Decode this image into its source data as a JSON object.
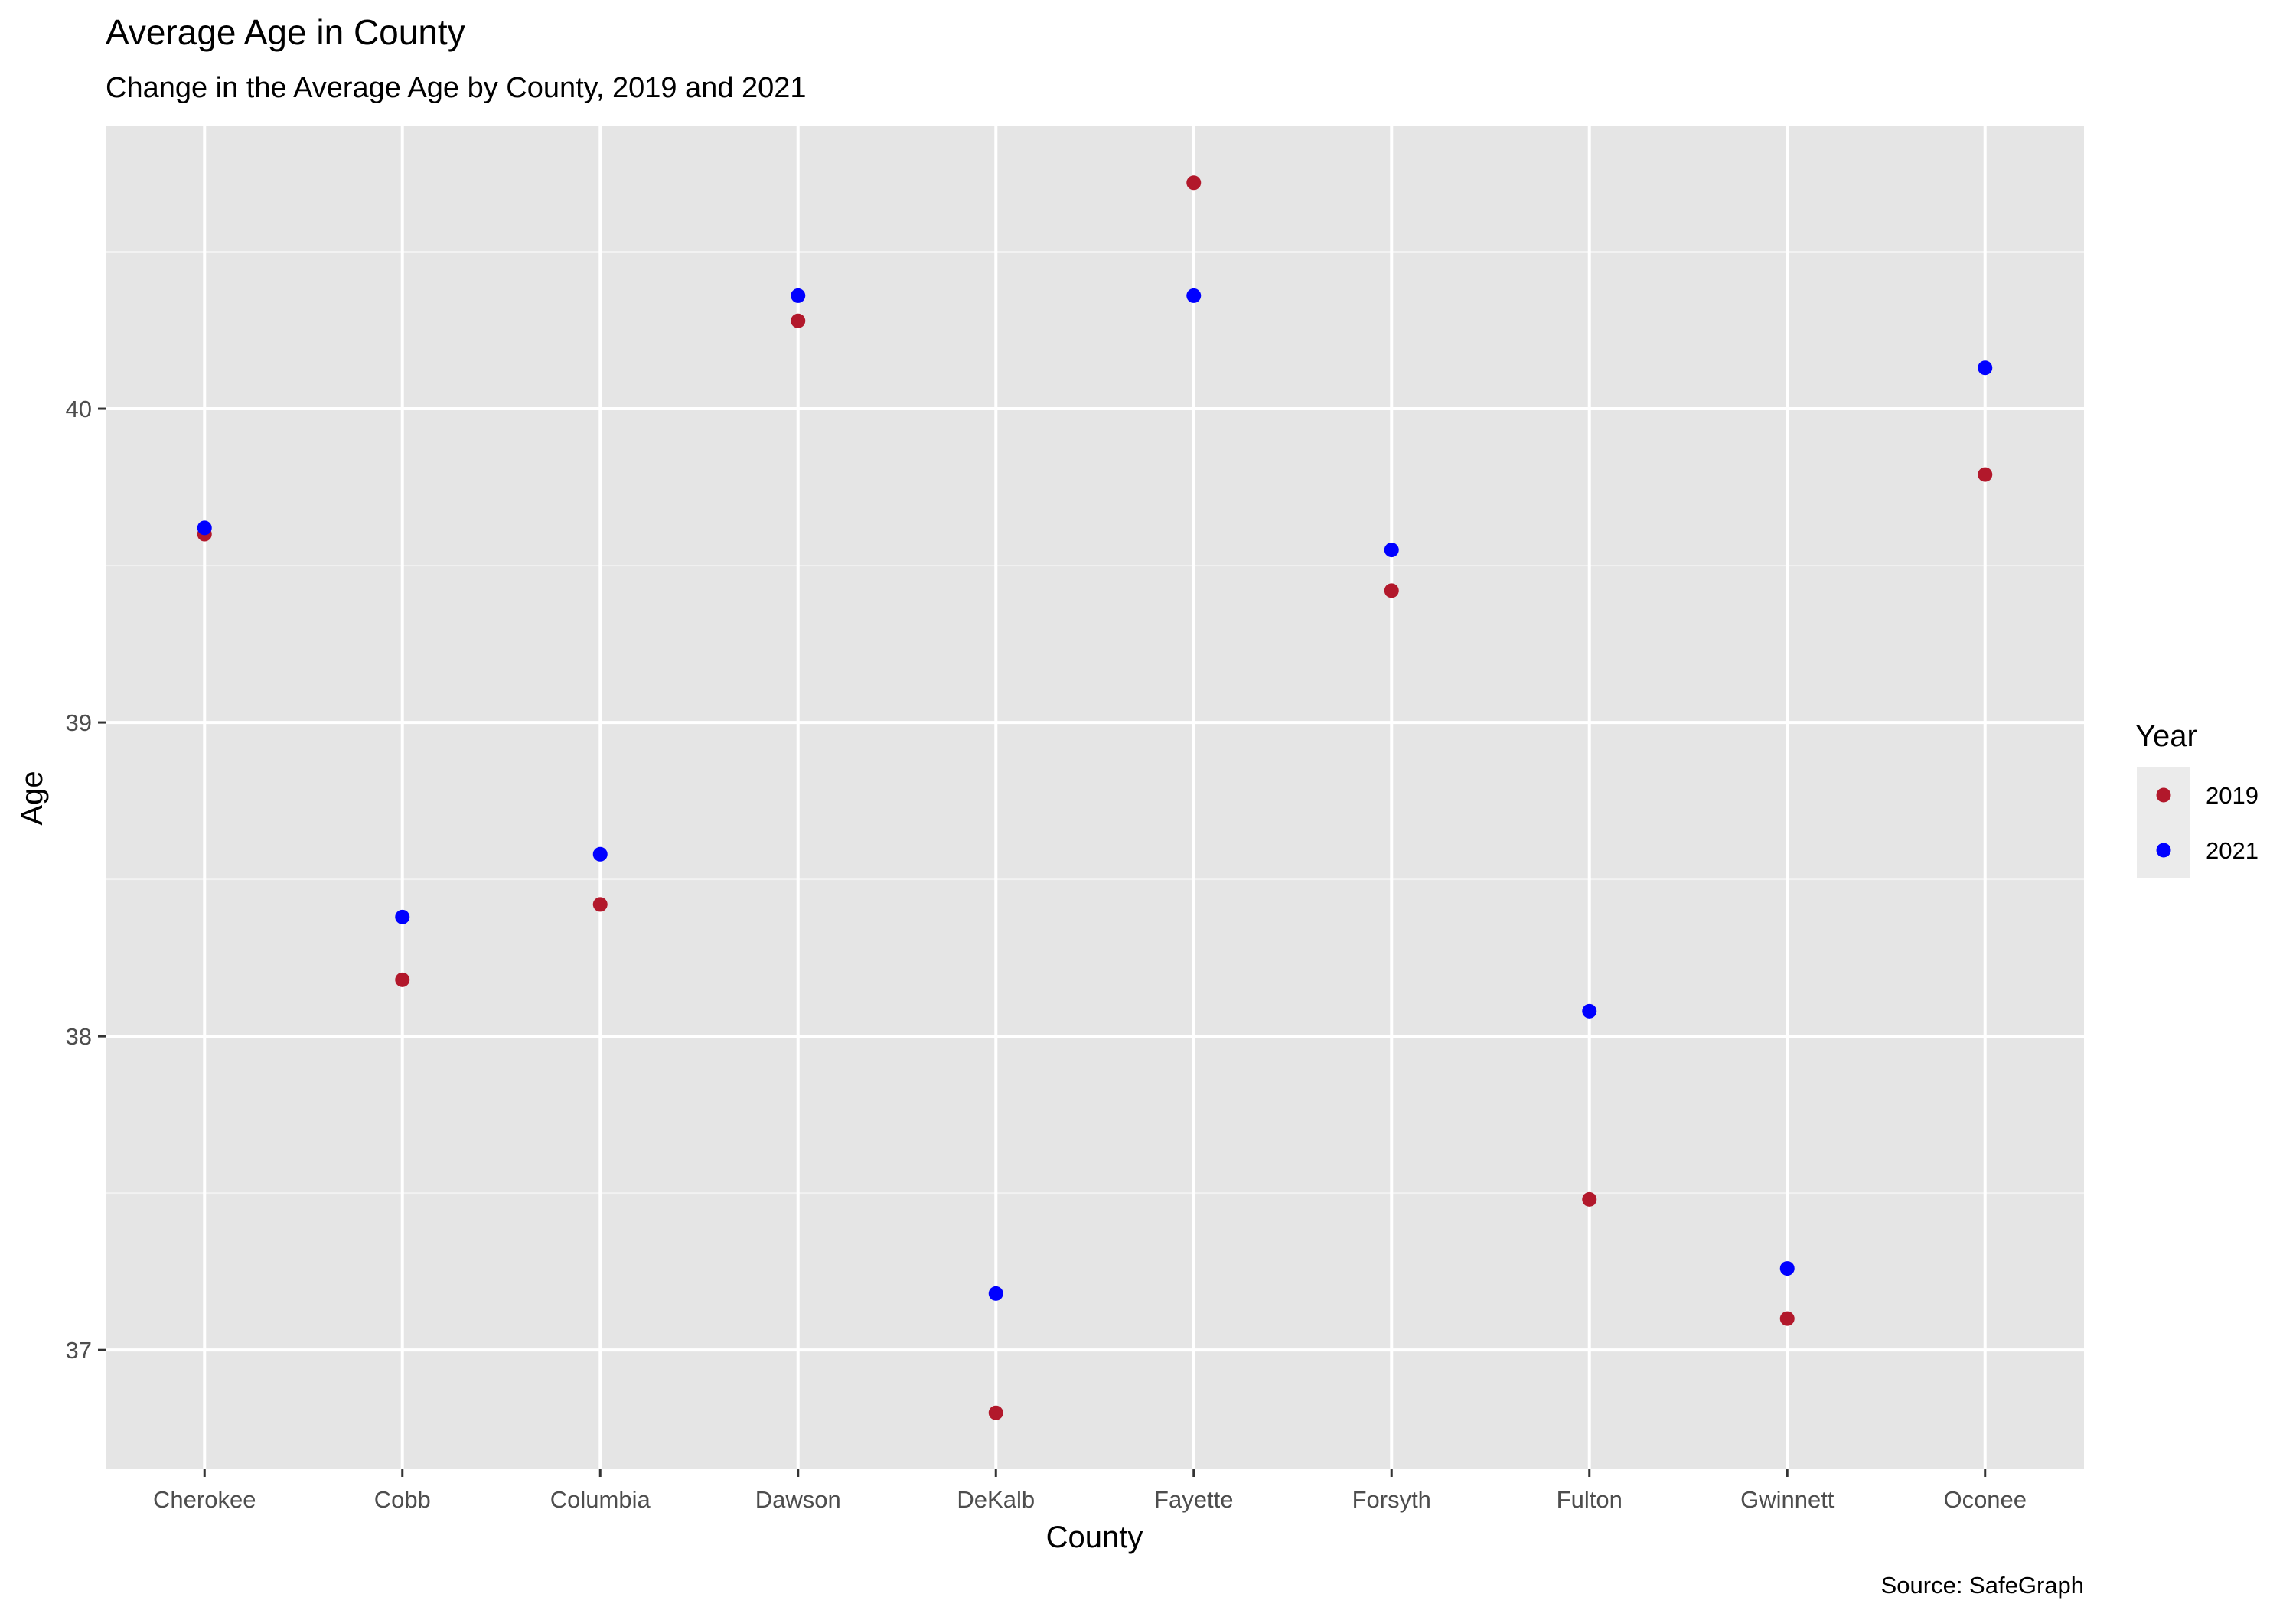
{
  "chart_data": {
    "type": "scatter",
    "title": "Average Age in County",
    "subtitle": "Change in the Average Age by County, 2019 and 2021",
    "xlabel": "County",
    "ylabel": "Age",
    "caption": "Source: SafeGraph",
    "categories": [
      "Cherokee",
      "Cobb",
      "Columbia",
      "Dawson",
      "DeKalb",
      "Fayette",
      "Forsyth",
      "Fulton",
      "Gwinnett",
      "Oconee"
    ],
    "y_ticks": [
      37,
      38,
      39,
      40
    ],
    "ylim": [
      36.62,
      40.9
    ],
    "grid": true,
    "legend": {
      "title": "Year",
      "placement": "right"
    },
    "series": [
      {
        "name": "2019",
        "color": "#b2182b",
        "values": [
          39.6,
          38.18,
          38.42,
          40.28,
          36.8,
          40.72,
          39.42,
          37.48,
          37.1,
          39.79
        ]
      },
      {
        "name": "2021",
        "color": "#0000ff",
        "values": [
          39.62,
          38.38,
          38.58,
          40.36,
          37.18,
          40.36,
          39.55,
          38.08,
          37.26,
          40.13
        ]
      }
    ]
  }
}
